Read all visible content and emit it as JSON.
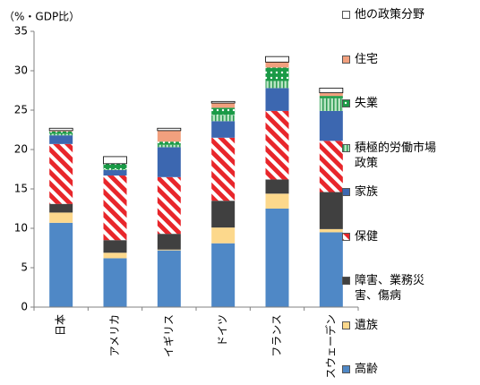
{
  "chart_data": {
    "type": "stacked_bar",
    "y_axis_label": "（%・GDP比）",
    "categories": [
      "日本",
      "アメリカ",
      "イギリス",
      "ドイツ",
      "フランス",
      "スウェーデン"
    ],
    "ylim": [
      0,
      35
    ],
    "yticks": [
      0,
      5,
      10,
      15,
      20,
      25,
      30,
      35
    ],
    "series": [
      {
        "name": "高齢",
        "color": "#4f88c6",
        "values": [
          10.7,
          6.2,
          7.2,
          8.1,
          12.5,
          9.5
        ]
      },
      {
        "name": "遺族",
        "color": "#fcd88c",
        "values": [
          1.3,
          0.7,
          0.1,
          2.0,
          1.9,
          0.4
        ]
      },
      {
        "name": "障害、業務災害、傷病",
        "color": "#404040",
        "values": [
          1.1,
          1.6,
          2.0,
          3.4,
          1.8,
          4.7
        ]
      },
      {
        "name": "保健",
        "color": "#e8262b",
        "pattern": "diagonal-stripes",
        "values": [
          7.6,
          8.2,
          7.2,
          8.0,
          8.7,
          6.5
        ]
      },
      {
        "name": "家族",
        "color": "#3c67b0",
        "values": [
          1.1,
          0.7,
          3.8,
          2.1,
          2.9,
          3.8
        ]
      },
      {
        "name": "積極的労働市場政策",
        "color": "#8fd0a0",
        "pattern": "vertical-stripes",
        "values": [
          0.2,
          0.1,
          0.3,
          0.8,
          0.9,
          1.6
        ]
      },
      {
        "name": "失業",
        "color": "#1a9a46",
        "pattern": "dots",
        "values": [
          0.3,
          0.7,
          0.4,
          0.9,
          1.7,
          0.3
        ]
      },
      {
        "name": "住宅",
        "color": "#f2a07e",
        "values": [
          0.1,
          0.0,
          1.4,
          0.6,
          0.7,
          0.4
        ]
      },
      {
        "name": "他の政策分野",
        "color": "#ffffff",
        "values": [
          0.3,
          0.9,
          0.3,
          0.2,
          0.7,
          0.6
        ]
      }
    ]
  }
}
